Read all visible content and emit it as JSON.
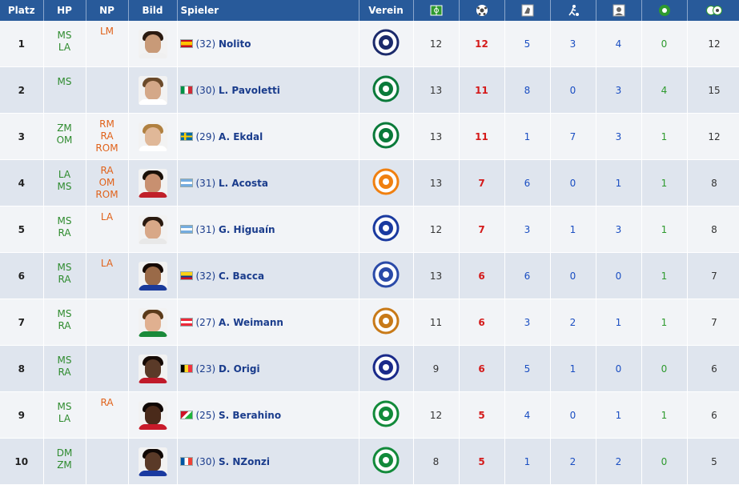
{
  "header": {
    "rank": "Platz",
    "hp": "HP",
    "np": "NP",
    "photo": "Bild",
    "player": "Spieler",
    "club": "Verein",
    "icons": [
      "matches-icon",
      "goals-icon",
      "right-foot-icon",
      "left-foot-icon",
      "header-icon",
      "penalty-icon",
      "scorer-points-icon"
    ]
  },
  "rows": [
    {
      "rank": "1",
      "hp": [
        "MS",
        "LA"
      ],
      "np": [
        "LM"
      ],
      "flag": "spain",
      "age": "(32)",
      "name": "Nolito",
      "club_icon": "dundee-crest",
      "club_color": "#1b2a6b",
      "matches": "12",
      "goals": "12",
      "s1": "5",
      "s2": "3",
      "s3": "4",
      "s4": "0",
      "points": "12",
      "skin": "#c89a78",
      "hair": "#2a1a10",
      "shirt": "#f0f0f0"
    },
    {
      "rank": "2",
      "hp": [
        "MS"
      ],
      "np": [],
      "flag": "italy",
      "age": "(30)",
      "name": "L. Pavoletti",
      "club_icon": "hibernian-crest",
      "club_color": "#0a7a3a",
      "matches": "13",
      "goals": "11",
      "s1": "8",
      "s2": "0",
      "s3": "3",
      "s4": "4",
      "points": "15",
      "skin": "#d4a888",
      "hair": "#6b4a2a",
      "shirt": "#ffffff"
    },
    {
      "rank": "3",
      "hp": [
        "ZM",
        "OM"
      ],
      "np": [
        "RM",
        "RA",
        "ROM"
      ],
      "flag": "sweden",
      "age": "(29)",
      "name": "A. Ekdal",
      "club_icon": "hibernian-crest",
      "club_color": "#0a7a3a",
      "matches": "13",
      "goals": "11",
      "s1": "1",
      "s2": "7",
      "s3": "3",
      "s4": "1",
      "points": "12",
      "skin": "#e0b898",
      "hair": "#b08040",
      "shirt": "#ffffff"
    },
    {
      "rank": "4",
      "hp": [
        "LA",
        "MS"
      ],
      "np": [
        "RA",
        "OM",
        "ROM"
      ],
      "flag": "argentina",
      "age": "(31)",
      "name": "L. Acosta",
      "club_icon": "dundee-united-crest",
      "club_color": "#f08010",
      "matches": "13",
      "goals": "7",
      "s1": "6",
      "s2": "0",
      "s3": "1",
      "s4": "1",
      "points": "8",
      "skin": "#c89070",
      "hair": "#1a1008",
      "shirt": "#c0202a"
    },
    {
      "rank": "5",
      "hp": [
        "MS",
        "RA"
      ],
      "np": [
        "LA"
      ],
      "flag": "argentina",
      "age": "(31)",
      "name": "G. Higuaín",
      "club_icon": "rangers-crest",
      "club_color": "#1a3aa0",
      "matches": "12",
      "goals": "7",
      "s1": "3",
      "s2": "1",
      "s3": "3",
      "s4": "1",
      "points": "8",
      "skin": "#d8a888",
      "hair": "#2a1a10",
      "shirt": "#e8e8e8"
    },
    {
      "rank": "6",
      "hp": [
        "MS",
        "RA"
      ],
      "np": [
        "LA"
      ],
      "flag": "colombia",
      "age": "(32)",
      "name": "C. Bacca",
      "club_icon": "kilmarnock-crest",
      "club_color": "#2a4aa8",
      "matches": "13",
      "goals": "6",
      "s1": "6",
      "s2": "0",
      "s3": "0",
      "s4": "1",
      "points": "7",
      "skin": "#9a6a48",
      "hair": "#150a05",
      "shirt": "#1a3a9a"
    },
    {
      "rank": "7",
      "hp": [
        "MS",
        "RA"
      ],
      "np": [],
      "flag": "austria",
      "age": "(27)",
      "name": "A. Weimann",
      "club_icon": "motherwell-crest",
      "club_color": "#c87a18",
      "matches": "11",
      "goals": "6",
      "s1": "3",
      "s2": "2",
      "s3": "1",
      "s4": "1",
      "points": "7",
      "skin": "#e0b090",
      "hair": "#5a3a1a",
      "shirt": "#1a8a3a"
    },
    {
      "rank": "8",
      "hp": [
        "MS",
        "RA"
      ],
      "np": [],
      "flag": "belgium",
      "age": "(23)",
      "name": "D. Origi",
      "club_icon": "inverness-crest",
      "club_color": "#1a2a8a",
      "matches": "9",
      "goals": "6",
      "s1": "5",
      "s2": "1",
      "s3": "0",
      "s4": "0",
      "points": "6",
      "skin": "#5a3a28",
      "hair": "#150a05",
      "shirt": "#c01a2a"
    },
    {
      "rank": "9",
      "hp": [
        "MS",
        "LA"
      ],
      "np": [
        "RA"
      ],
      "flag": "burundi",
      "age": "(25)",
      "name": "S. Berahino",
      "club_icon": "celtic-crest",
      "club_color": "#128a3a",
      "matches": "12",
      "goals": "5",
      "s1": "4",
      "s2": "0",
      "s3": "1",
      "s4": "1",
      "points": "6",
      "skin": "#4a2a1a",
      "hair": "#100805",
      "shirt": "#c81a2a"
    },
    {
      "rank": "10",
      "hp": [
        "DM",
        "ZM"
      ],
      "np": [],
      "flag": "france",
      "age": "(30)",
      "name": "S. NZonzi",
      "club_icon": "celtic-crest",
      "club_color": "#128a3a",
      "matches": "8",
      "goals": "5",
      "s1": "1",
      "s2": "2",
      "s3": "2",
      "s4": "0",
      "points": "5",
      "skin": "#5a3a28",
      "hair": "#100805",
      "shirt": "#1a3aa0"
    }
  ]
}
